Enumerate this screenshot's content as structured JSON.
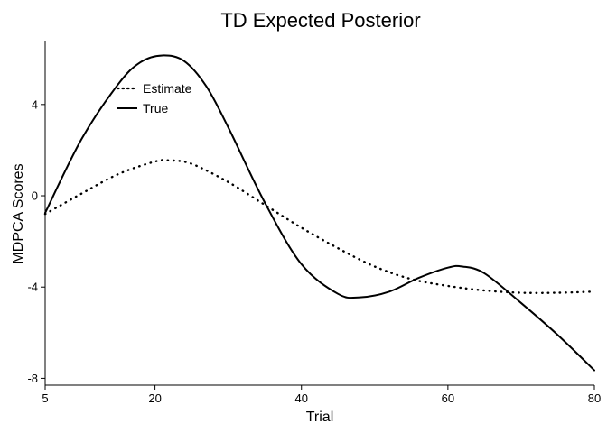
{
  "chart_data": {
    "type": "line",
    "title": "TD Expected Posterior",
    "xlabel": "Trial",
    "ylabel": "MDPCA Scores",
    "xlim": [
      5,
      80
    ],
    "ylim": [
      -8.3,
      6.8
    ],
    "xticks": [
      5,
      20,
      40,
      60,
      80
    ],
    "xtick_labels": [
      "5",
      "20",
      "40",
      "60",
      "80"
    ],
    "yticks": [
      4,
      0,
      -4,
      -8
    ],
    "ytick_labels": [
      "4",
      "0",
      "-4",
      "-8"
    ],
    "grid": false,
    "legend_position": "top-left",
    "series": [
      {
        "name": "Estimate",
        "style": "dotted",
        "color": "#000000",
        "x": [
          5,
          10,
          15,
          20,
          22,
          25,
          30,
          35,
          40,
          45,
          50,
          55,
          60,
          65,
          70,
          75,
          80
        ],
        "y": [
          -0.8,
          0.1,
          0.95,
          1.5,
          1.55,
          1.4,
          0.6,
          -0.4,
          -1.4,
          -2.3,
          -3.1,
          -3.65,
          -3.95,
          -4.15,
          -4.25,
          -4.25,
          -4.2
        ]
      },
      {
        "name": "True",
        "style": "solid",
        "color": "#000000",
        "x": [
          5,
          10,
          15,
          18,
          21,
          24,
          27,
          30,
          35,
          40,
          45,
          48,
          52,
          56,
          60,
          62,
          65,
          70,
          75,
          80
        ],
        "y": [
          -0.75,
          2.5,
          4.9,
          5.85,
          6.15,
          5.9,
          4.8,
          3.0,
          -0.3,
          -3.0,
          -4.3,
          -4.45,
          -4.2,
          -3.6,
          -3.15,
          -3.1,
          -3.4,
          -4.7,
          -6.1,
          -7.65
        ]
      }
    ]
  }
}
